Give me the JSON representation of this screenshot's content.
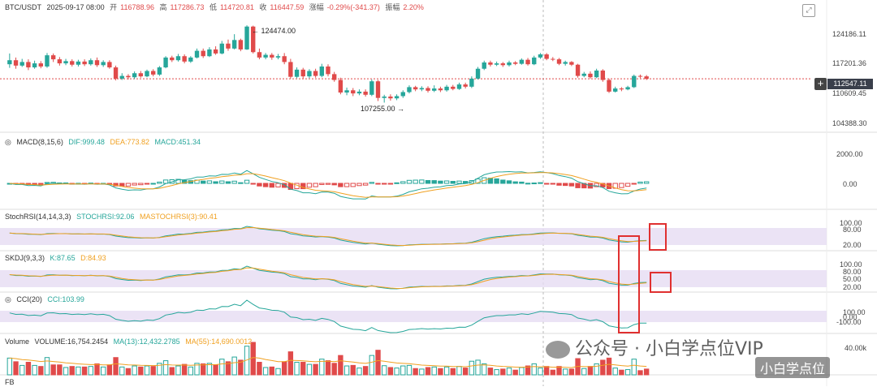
{
  "header": {
    "symbol": "BTC/USDT",
    "date": "2025-09-17 08:00",
    "open_label": "开",
    "open": "116788.96",
    "high_label": "高",
    "high": "117286.73",
    "low_label": "低",
    "low": "114720.81",
    "close_label": "收",
    "close": "116447.59",
    "change_label": "涨幅",
    "change": "-0.29%(-341.37)",
    "amp_label": "振幅",
    "amp": "2.20%"
  },
  "indicators": {
    "macd": {
      "label": "MACD(8,15,6)",
      "dif": "DIF:999.48",
      "dea": "DEA:773.82",
      "macd": "MACD:451.34"
    },
    "stochrsi": {
      "label": "StochRSI(14,14,3,3)",
      "k": "STOCHRSI:92.06",
      "d": "MASTOCHRSI(3):90.41"
    },
    "skdj": {
      "label": "SKDJ(9,3,3)",
      "k": "K:87.65",
      "d": "D:84.93"
    },
    "cci": {
      "label": "CCI(20)",
      "v": "CCI:103.99"
    },
    "volume": {
      "label": "Volume",
      "v": "VOLUME:16,754.2454",
      "ma13": "MA(13):12,432.2785",
      "ma55": "MA(55):14,690.0012"
    },
    "bottom": {
      "label": "FB"
    }
  },
  "price_axis": [
    "124186.11",
    "117201.36",
    "110609.45",
    "104388.30"
  ],
  "current_price": "112547.11",
  "macd_axis": [
    "2000.00",
    "0.00"
  ],
  "stoch_axis": [
    "100.00",
    "80.00",
    "20.00"
  ],
  "skdj_axis": [
    "100.00",
    "80.00",
    "50.00",
    "20.00"
  ],
  "cci_axis": [
    "100.00",
    "0.00",
    "-100.00"
  ],
  "vol_axis": [
    "40.00k"
  ],
  "annotations": {
    "high": "124474.00",
    "low": "107255.00"
  },
  "watermark": {
    "text": "公众号 · 小白学点位VIP",
    "text2": "小白学点位"
  },
  "colors": {
    "up": "#26a69a",
    "down": "#e04a4a",
    "dea": "#f0a020",
    "dif": "#26a69a",
    "band": "#e6dcf2",
    "box": "#e03030"
  },
  "chart_data": {
    "type": "candlestick",
    "title": "BTC/USDT",
    "candles": [
      {
        "o": 115800,
        "c": 116700,
        "h": 118200,
        "l": 115000
      },
      {
        "o": 116700,
        "c": 115500,
        "h": 117300,
        "l": 114800
      },
      {
        "o": 115500,
        "c": 116300,
        "h": 117000,
        "l": 115200
      },
      {
        "o": 116300,
        "c": 115100,
        "h": 116900,
        "l": 114500
      },
      {
        "o": 115100,
        "c": 116000,
        "h": 116600,
        "l": 114800
      },
      {
        "o": 116000,
        "c": 115300,
        "h": 116500,
        "l": 114900
      },
      {
        "o": 115300,
        "c": 117800,
        "h": 118300,
        "l": 115000
      },
      {
        "o": 117800,
        "c": 116900,
        "h": 118200,
        "l": 116300
      },
      {
        "o": 116900,
        "c": 116000,
        "h": 117400,
        "l": 115500
      },
      {
        "o": 116000,
        "c": 116500,
        "h": 117000,
        "l": 115600
      },
      {
        "o": 116500,
        "c": 115700,
        "h": 116900,
        "l": 115300
      },
      {
        "o": 115700,
        "c": 116400,
        "h": 116800,
        "l": 115300
      },
      {
        "o": 116400,
        "c": 115800,
        "h": 116900,
        "l": 115400
      },
      {
        "o": 115800,
        "c": 116700,
        "h": 117100,
        "l": 115500
      },
      {
        "o": 116700,
        "c": 115600,
        "h": 117300,
        "l": 115200
      },
      {
        "o": 115600,
        "c": 116300,
        "h": 116700,
        "l": 115200
      },
      {
        "o": 116300,
        "c": 115100,
        "h": 116700,
        "l": 114800
      },
      {
        "o": 115100,
        "c": 112600,
        "h": 115500,
        "l": 112200
      },
      {
        "o": 112600,
        "c": 113200,
        "h": 113800,
        "l": 112300
      },
      {
        "o": 113200,
        "c": 112900,
        "h": 113600,
        "l": 112400
      },
      {
        "o": 112900,
        "c": 113800,
        "h": 114200,
        "l": 112500
      },
      {
        "o": 113800,
        "c": 113100,
        "h": 114300,
        "l": 112800
      },
      {
        "o": 113100,
        "c": 114300,
        "h": 114600,
        "l": 112900
      },
      {
        "o": 114300,
        "c": 113500,
        "h": 114700,
        "l": 113100
      },
      {
        "o": 113500,
        "c": 115100,
        "h": 115400,
        "l": 113200
      },
      {
        "o": 115100,
        "c": 117300,
        "h": 117600,
        "l": 114900
      },
      {
        "o": 117300,
        "c": 116700,
        "h": 117700,
        "l": 116300
      },
      {
        "o": 116700,
        "c": 117600,
        "h": 118100,
        "l": 116400
      },
      {
        "o": 117600,
        "c": 116400,
        "h": 118000,
        "l": 116000
      },
      {
        "o": 116400,
        "c": 117300,
        "h": 117600,
        "l": 116100
      },
      {
        "o": 117300,
        "c": 118800,
        "h": 119300,
        "l": 117100
      },
      {
        "o": 118800,
        "c": 117600,
        "h": 119300,
        "l": 117200
      },
      {
        "o": 117600,
        "c": 119100,
        "h": 119600,
        "l": 117400
      },
      {
        "o": 119100,
        "c": 118200,
        "h": 119800,
        "l": 117900
      },
      {
        "o": 118200,
        "c": 120400,
        "h": 121000,
        "l": 118000
      },
      {
        "o": 120400,
        "c": 119300,
        "h": 121300,
        "l": 118800
      },
      {
        "o": 119300,
        "c": 121200,
        "h": 122500,
        "l": 119100
      },
      {
        "o": 121200,
        "c": 119100,
        "h": 121500,
        "l": 118700
      },
      {
        "o": 119100,
        "c": 124200,
        "h": 124474,
        "l": 119000
      },
      {
        "o": 124200,
        "c": 118500,
        "h": 124400,
        "l": 118200
      },
      {
        "o": 118500,
        "c": 117300,
        "h": 119300,
        "l": 116900
      },
      {
        "o": 117300,
        "c": 117900,
        "h": 118300,
        "l": 116900
      },
      {
        "o": 117900,
        "c": 117300,
        "h": 118300,
        "l": 116800
      },
      {
        "o": 117300,
        "c": 117600,
        "h": 118100,
        "l": 116900
      },
      {
        "o": 117600,
        "c": 116300,
        "h": 118300,
        "l": 115800
      },
      {
        "o": 116300,
        "c": 113000,
        "h": 117000,
        "l": 112600
      },
      {
        "o": 113000,
        "c": 114600,
        "h": 115100,
        "l": 112700
      },
      {
        "o": 114600,
        "c": 113100,
        "h": 115000,
        "l": 112600
      },
      {
        "o": 113100,
        "c": 114300,
        "h": 114700,
        "l": 112700
      },
      {
        "o": 114300,
        "c": 113200,
        "h": 114800,
        "l": 112800
      },
      {
        "o": 113200,
        "c": 115300,
        "h": 115900,
        "l": 112900
      },
      {
        "o": 115300,
        "c": 113600,
        "h": 115800,
        "l": 113100
      },
      {
        "o": 113600,
        "c": 112300,
        "h": 114100,
        "l": 111900
      },
      {
        "o": 112300,
        "c": 109500,
        "h": 112800,
        "l": 109100
      },
      {
        "o": 109500,
        "c": 110000,
        "h": 110600,
        "l": 108900
      },
      {
        "o": 110000,
        "c": 109300,
        "h": 110500,
        "l": 108700
      },
      {
        "o": 109300,
        "c": 109700,
        "h": 110200,
        "l": 108900
      },
      {
        "o": 109700,
        "c": 109000,
        "h": 110200,
        "l": 108600
      },
      {
        "o": 109000,
        "c": 112000,
        "h": 112400,
        "l": 108700
      },
      {
        "o": 112000,
        "c": 108300,
        "h": 112300,
        "l": 107600
      },
      {
        "o": 108300,
        "c": 108600,
        "h": 109000,
        "l": 107255
      },
      {
        "o": 108600,
        "c": 108200,
        "h": 109100,
        "l": 107700
      },
      {
        "o": 108200,
        "c": 108700,
        "h": 109100,
        "l": 107800
      },
      {
        "o": 108700,
        "c": 109600,
        "h": 110000,
        "l": 108300
      },
      {
        "o": 109600,
        "c": 110700,
        "h": 111100,
        "l": 109300
      },
      {
        "o": 110700,
        "c": 110200,
        "h": 111000,
        "l": 109800
      },
      {
        "o": 110200,
        "c": 110500,
        "h": 110900,
        "l": 109800
      },
      {
        "o": 110500,
        "c": 109900,
        "h": 110900,
        "l": 109500
      },
      {
        "o": 109900,
        "c": 110400,
        "h": 111100,
        "l": 109600
      },
      {
        "o": 110400,
        "c": 110000,
        "h": 110800,
        "l": 109600
      },
      {
        "o": 110000,
        "c": 110800,
        "h": 111200,
        "l": 109700
      },
      {
        "o": 110800,
        "c": 110300,
        "h": 111200,
        "l": 110000
      },
      {
        "o": 110300,
        "c": 111300,
        "h": 111700,
        "l": 110100
      },
      {
        "o": 111300,
        "c": 110800,
        "h": 111700,
        "l": 110400
      },
      {
        "o": 110800,
        "c": 112600,
        "h": 113100,
        "l": 110500
      },
      {
        "o": 112600,
        "c": 114800,
        "h": 115200,
        "l": 112400
      },
      {
        "o": 114800,
        "c": 116200,
        "h": 116600,
        "l": 114500
      },
      {
        "o": 116200,
        "c": 115700,
        "h": 116600,
        "l": 115300
      },
      {
        "o": 115700,
        "c": 116000,
        "h": 116400,
        "l": 115400
      },
      {
        "o": 116000,
        "c": 115600,
        "h": 116300,
        "l": 115200
      },
      {
        "o": 115600,
        "c": 116200,
        "h": 116600,
        "l": 115300
      },
      {
        "o": 116200,
        "c": 115900,
        "h": 116500,
        "l": 115600
      },
      {
        "o": 115900,
        "c": 116800,
        "h": 117100,
        "l": 115700
      },
      {
        "o": 116800,
        "c": 115800,
        "h": 117200,
        "l": 115500
      },
      {
        "o": 115800,
        "c": 117300,
        "h": 117700,
        "l": 115600
      },
      {
        "o": 117300,
        "c": 118000,
        "h": 118300,
        "l": 117000
      },
      {
        "o": 118000,
        "c": 117000,
        "h": 118300,
        "l": 116700
      },
      {
        "o": 117000,
        "c": 116900,
        "h": 117400,
        "l": 116500
      },
      {
        "o": 116900,
        "c": 115900,
        "h": 117200,
        "l": 115600
      },
      {
        "o": 115900,
        "c": 116300,
        "h": 116600,
        "l": 115500
      },
      {
        "o": 116300,
        "c": 115700,
        "h": 116500,
        "l": 115400
      },
      {
        "o": 115700,
        "c": 113200,
        "h": 115900,
        "l": 112800
      },
      {
        "o": 113200,
        "c": 113700,
        "h": 114100,
        "l": 112900
      },
      {
        "o": 113700,
        "c": 112900,
        "h": 114200,
        "l": 112600
      },
      {
        "o": 112900,
        "c": 114400,
        "h": 114800,
        "l": 112700
      },
      {
        "o": 114400,
        "c": 112300,
        "h": 114700,
        "l": 111900
      },
      {
        "o": 112300,
        "c": 109700,
        "h": 112600,
        "l": 109400
      },
      {
        "o": 109700,
        "c": 110400,
        "h": 110800,
        "l": 109500
      },
      {
        "o": 110400,
        "c": 110200,
        "h": 110700,
        "l": 109800
      },
      {
        "o": 110200,
        "c": 110700,
        "h": 111000,
        "l": 110000
      },
      {
        "o": 110700,
        "c": 113200,
        "h": 113500,
        "l": 110500
      },
      {
        "o": 113200,
        "c": 113100,
        "h": 113500,
        "l": 112700
      },
      {
        "o": 113100,
        "c": 112547,
        "h": 113400,
        "l": 112300
      }
    ],
    "ylim": [
      103000,
      126500
    ],
    "current_price": 112547.11
  }
}
